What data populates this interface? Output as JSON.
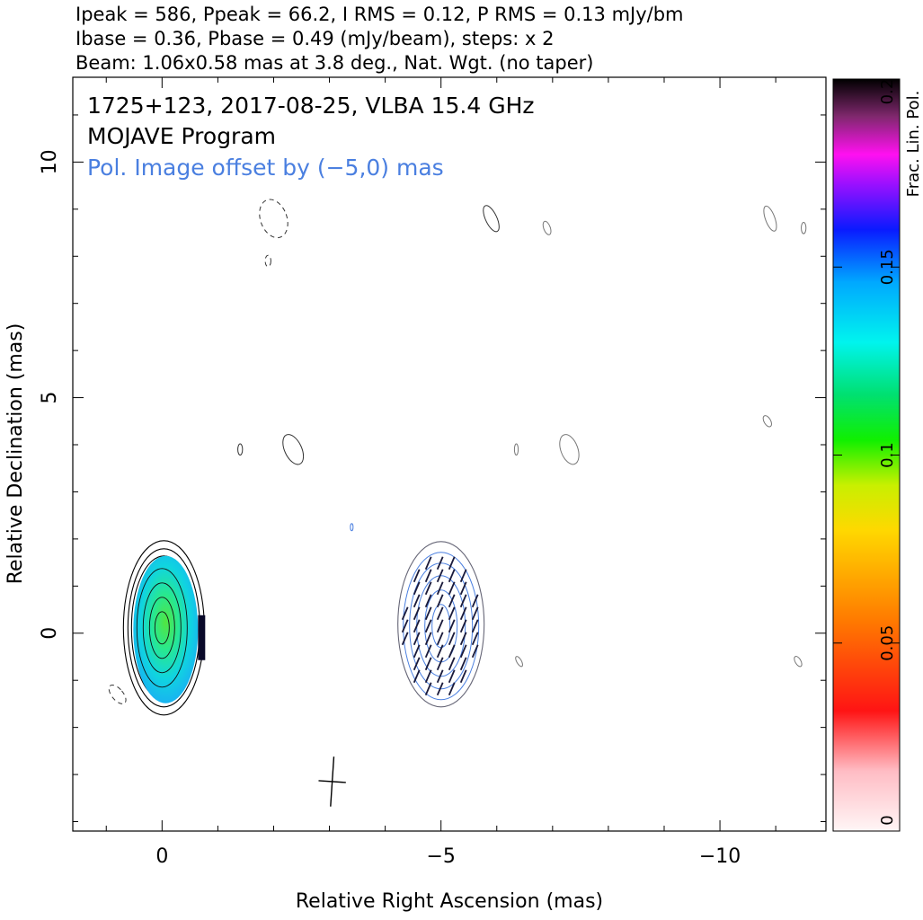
{
  "header": {
    "line1": "Ipeak = 586, Ppeak = 66.2, I RMS = 0.12, P RMS = 0.13 mJy/bm",
    "line2": "Ibase = 0.36, Pbase = 0.49 (mJy/beam), steps: x 2",
    "line3": "Beam: 1.06x0.58 mas at 3.8 deg., Nat. Wgt. (no taper)"
  },
  "annotations": {
    "source": "1725+123, 2017-08-25, VLBA 15.4 GHz",
    "program": "MOJAVE Program",
    "offset_note": "Pol. Image offset by (−5,0) mas"
  },
  "chart_data": {
    "type": "heatmap",
    "xlabel": "Relative Right Ascension (mas)",
    "ylabel": "Relative Declination (mas)",
    "xlim": [
      1.6,
      -11.9
    ],
    "ylim": [
      -4.2,
      11.8
    ],
    "x_ticks": [
      0,
      -5,
      -10
    ],
    "x_tick_labels": [
      "0",
      "−5",
      "−10"
    ],
    "y_ticks": [
      0,
      5,
      10
    ],
    "y_tick_labels": [
      "0",
      "5",
      "10"
    ],
    "colorbar": {
      "label": "Frac. Lin. Pol.",
      "range": [
        0,
        0.2
      ],
      "ticks": [
        0,
        0.05,
        0.1,
        0.15,
        0.2
      ],
      "tick_labels": [
        "0",
        "0.05",
        "0.1",
        "0.15",
        "0.2"
      ]
    },
    "core": {
      "x": 0,
      "y": 0,
      "peak_mJy_per_beam": 586
    },
    "polarized_core": {
      "x": -5,
      "y": 0,
      "peak_mJy_per_beam": 66.2
    },
    "beam": {
      "major_mas": 1.06,
      "minor_mas": 0.58,
      "pa_deg": 3.8
    },
    "colors": {
      "total_intensity_contours": "#000000",
      "polarization_contours": "#4a7fe0",
      "evpa_ticks": "#1a1a3a"
    }
  }
}
